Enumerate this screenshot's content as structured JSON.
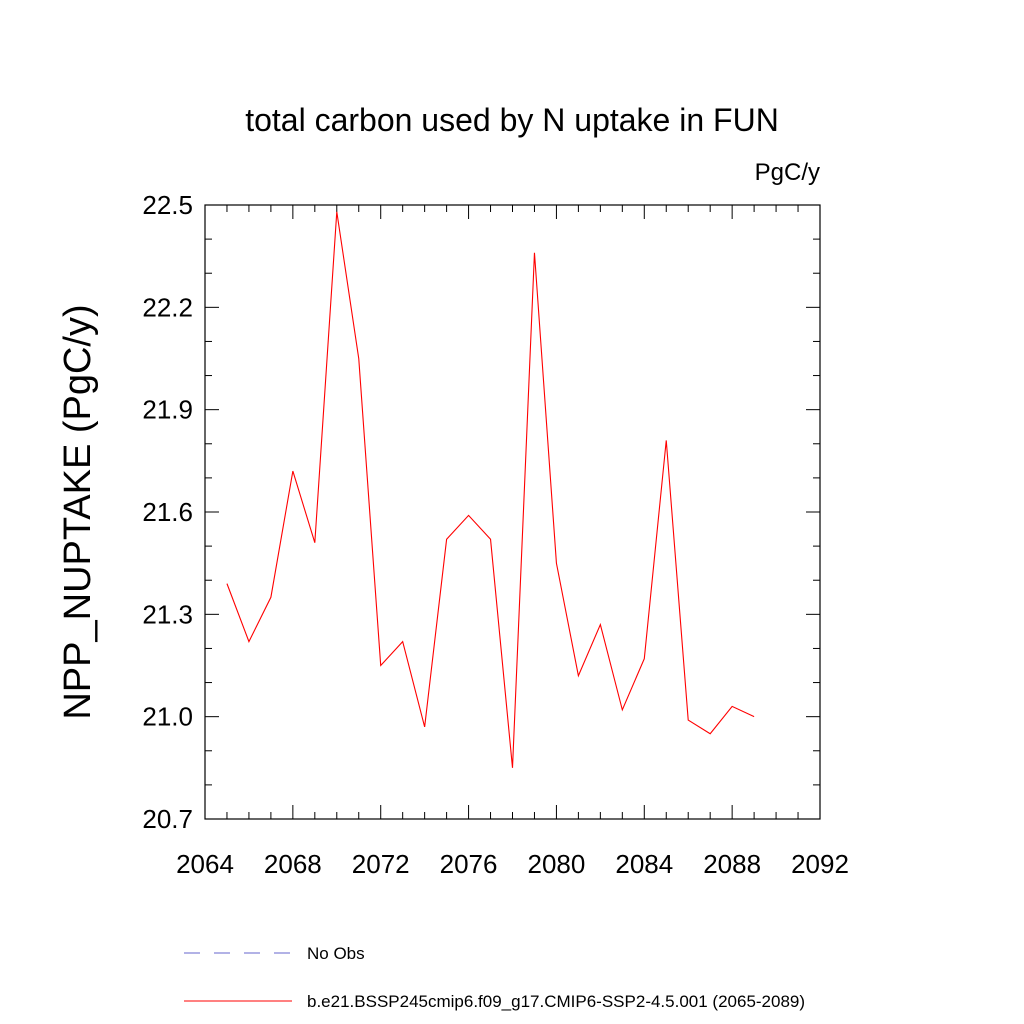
{
  "chart_data": {
    "type": "line",
    "title": "total carbon used by N uptake in FUN",
    "units_label": "PgC/y",
    "xlabel": "",
    "ylabel": "NPP_NUPTAKE  (PgC/y)",
    "xlim": [
      2064,
      2092
    ],
    "ylim": [
      20.7,
      22.5
    ],
    "x_ticks": [
      "2064",
      "2068",
      "2072",
      "2076",
      "2080",
      "2084",
      "2088",
      "2092"
    ],
    "y_ticks": [
      "20.7",
      "21.0",
      "21.3",
      "21.6",
      "21.9",
      "22.2",
      "22.5"
    ],
    "grid": false,
    "legend_position": "bottom",
    "series": [
      {
        "name": "b.e21.BSSP245cmip6.f09_g17.CMIP6-SSP2-4.5.001 (2065-2089)",
        "color": "#ff0000",
        "style": "solid",
        "x": [
          2065,
          2066,
          2067,
          2068,
          2069,
          2070,
          2071,
          2072,
          2073,
          2074,
          2075,
          2076,
          2077,
          2078,
          2079,
          2080,
          2081,
          2082,
          2083,
          2084,
          2085,
          2086,
          2087,
          2088,
          2089
        ],
        "values": [
          21.39,
          21.22,
          21.35,
          21.72,
          21.51,
          22.48,
          22.05,
          21.15,
          21.22,
          20.97,
          21.52,
          21.59,
          21.52,
          20.85,
          22.36,
          21.45,
          21.12,
          21.27,
          21.02,
          21.17,
          21.81,
          20.99,
          20.95,
          21.03,
          21.0
        ]
      }
    ],
    "legend": [
      {
        "label": "No Obs",
        "color": "#6666cc",
        "style": "dashed"
      },
      {
        "label": "b.e21.BSSP245cmip6.f09_g17.CMIP6-SSP2-4.5.001 (2065-2089)",
        "color": "#ff0000",
        "style": "solid"
      }
    ]
  }
}
